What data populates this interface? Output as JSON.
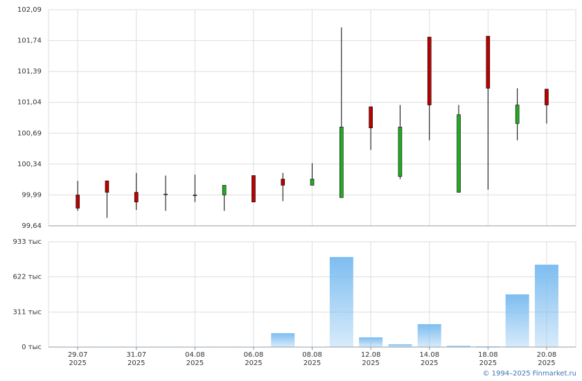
{
  "chart_data": [
    {
      "type": "candlestick",
      "up_color": "#22aa22",
      "down_color": "#bb0000",
      "open": [
        99.99,
        100.15,
        100.02,
        100.0,
        99.99,
        99.99,
        100.21,
        100.17,
        100.1,
        99.96,
        100.99,
        100.2,
        101.78,
        100.02,
        101.79,
        100.8,
        101.19
      ],
      "high": [
        100.15,
        100.15,
        100.24,
        100.21,
        100.22,
        100.1,
        100.21,
        100.24,
        100.35,
        101.89,
        100.99,
        101.01,
        101.78,
        101.01,
        101.79,
        101.2,
        101.19
      ],
      "low": [
        99.81,
        99.73,
        99.82,
        99.81,
        99.91,
        99.81,
        99.91,
        99.92,
        100.1,
        99.96,
        100.5,
        100.17,
        100.61,
        100.02,
        100.05,
        100.61,
        100.8
      ],
      "close": [
        99.84,
        100.02,
        99.91,
        100.0,
        99.99,
        100.1,
        99.91,
        100.1,
        100.17,
        100.76,
        100.75,
        100.76,
        101.01,
        100.9,
        101.2,
        101.01,
        101.01
      ],
      "ylim": [
        99.64,
        102.09
      ],
      "yticks": [
        {
          "value": 99.64,
          "label": "99,64"
        },
        {
          "value": 99.99,
          "label": "99,99"
        },
        {
          "value": 100.34,
          "label": "100,34"
        },
        {
          "value": 100.69,
          "label": "100,69"
        },
        {
          "value": 101.04,
          "label": "101,04"
        },
        {
          "value": 101.39,
          "label": "101,39"
        },
        {
          "value": 101.74,
          "label": "101,74"
        },
        {
          "value": 102.09,
          "label": "102,09"
        }
      ],
      "grid": true
    },
    {
      "type": "bar",
      "color": "#7dbdf0",
      "categories": [
        "29.07\n2025",
        null,
        "31.07\n2025",
        null,
        "04.08\n2025",
        null,
        "06.08\n2025",
        null,
        "08.08\n2025",
        null,
        "12.08\n2025",
        null,
        "14.08\n2025",
        null,
        "18.08\n2025",
        null,
        "20.08\n2025"
      ],
      "values": [
        2,
        2,
        2,
        2,
        2,
        2,
        2,
        123,
        3,
        798,
        86,
        25,
        203,
        12,
        6,
        467,
        730
      ],
      "ylim": [
        0,
        933
      ],
      "yticks": [
        {
          "value": 0,
          "label": "0 тыс"
        },
        {
          "value": 311,
          "label": "311 тыс"
        },
        {
          "value": 622,
          "label": "622 тыс"
        },
        {
          "value": 933,
          "label": "933 тыс"
        }
      ],
      "grid": true
    },
    {
      "footer": "© 1994–2025 Finmarket.ru"
    }
  ]
}
